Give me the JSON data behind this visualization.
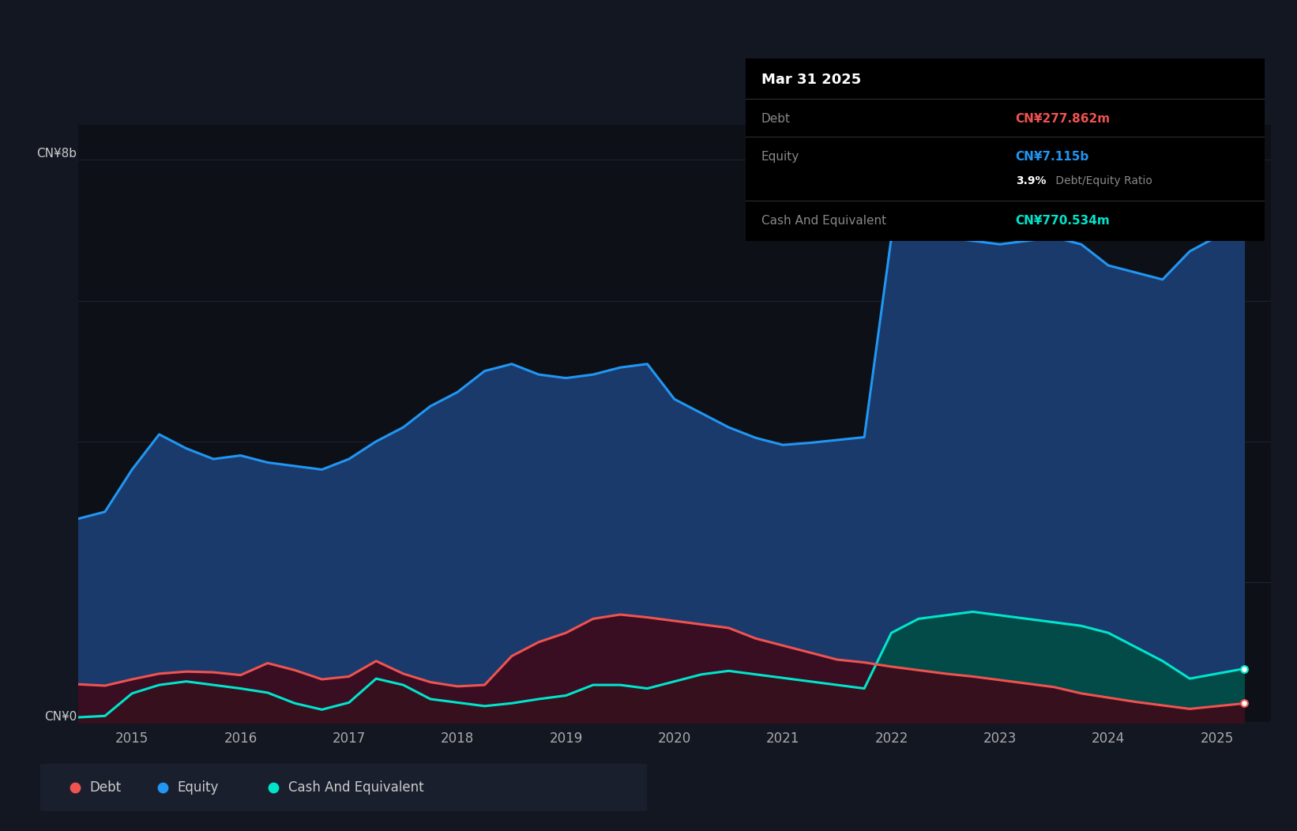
{
  "bg_color": "#131722",
  "plot_bg_color": "#0d1117",
  "grid_color": "#1e2130",
  "equity_color": "#2196F3",
  "equity_fill": "#1a3a6b",
  "debt_color": "#ef5350",
  "debt_fill": "#3d0a1a",
  "cash_color": "#00e5cc",
  "cash_fill": "#004d45",
  "ylim": [
    0,
    8500000000
  ],
  "yticks": [
    0,
    2000000000,
    4000000000,
    6000000000,
    8000000000
  ],
  "tooltip_title": "Mar 31 2025",
  "tooltip_debt_label": "Debt",
  "tooltip_debt_value": "CN¥277.862m",
  "tooltip_equity_label": "Equity",
  "tooltip_equity_value": "CN¥7.115b",
  "tooltip_ratio": "3.9%",
  "tooltip_ratio_label": " Debt/Equity Ratio",
  "tooltip_cash_label": "Cash And Equivalent",
  "tooltip_cash_value": "CN¥770.534m",
  "legend_debt": "Debt",
  "legend_equity": "Equity",
  "legend_cash": "Cash And Equivalent",
  "equity_years": [
    2014.5,
    2014.75,
    2015.0,
    2015.25,
    2015.5,
    2015.75,
    2016.0,
    2016.25,
    2016.5,
    2016.75,
    2017.0,
    2017.25,
    2017.5,
    2017.75,
    2018.0,
    2018.25,
    2018.5,
    2018.75,
    2019.0,
    2019.25,
    2019.5,
    2019.75,
    2020.0,
    2020.25,
    2020.5,
    2020.75,
    2021.0,
    2021.25,
    2021.5,
    2021.75,
    2022.0,
    2022.25,
    2022.5,
    2022.75,
    2023.0,
    2023.25,
    2023.5,
    2023.75,
    2024.0,
    2024.25,
    2024.5,
    2024.75,
    2025.25
  ],
  "equity_vals": [
    2900000000,
    3000000000,
    3600000000,
    4100000000,
    3900000000,
    3750000000,
    3800000000,
    3700000000,
    3650000000,
    3600000000,
    3750000000,
    4000000000,
    4200000000,
    4500000000,
    4700000000,
    5000000000,
    5100000000,
    4950000000,
    4900000000,
    4950000000,
    5050000000,
    5100000000,
    4600000000,
    4400000000,
    4200000000,
    4050000000,
    3950000000,
    3980000000,
    4020000000,
    4060000000,
    6900000000,
    6950000000,
    6900000000,
    6850000000,
    6800000000,
    6850000000,
    6900000000,
    6800000000,
    6500000000,
    6400000000,
    6300000000,
    6700000000,
    7115000000
  ],
  "debt_years": [
    2014.5,
    2014.75,
    2015.0,
    2015.25,
    2015.5,
    2015.75,
    2016.0,
    2016.25,
    2016.5,
    2016.75,
    2017.0,
    2017.25,
    2017.5,
    2017.75,
    2018.0,
    2018.25,
    2018.5,
    2018.75,
    2019.0,
    2019.25,
    2019.5,
    2019.75,
    2020.0,
    2020.25,
    2020.5,
    2020.75,
    2021.0,
    2021.25,
    2021.5,
    2021.75,
    2022.0,
    2022.25,
    2022.5,
    2022.75,
    2023.0,
    2023.25,
    2023.5,
    2023.75,
    2024.0,
    2024.25,
    2024.5,
    2024.75,
    2025.25
  ],
  "debt_vals": [
    550000000,
    530000000,
    620000000,
    700000000,
    730000000,
    720000000,
    680000000,
    850000000,
    750000000,
    620000000,
    660000000,
    880000000,
    700000000,
    580000000,
    520000000,
    540000000,
    950000000,
    1150000000,
    1280000000,
    1480000000,
    1540000000,
    1500000000,
    1450000000,
    1400000000,
    1350000000,
    1200000000,
    1100000000,
    1000000000,
    900000000,
    860000000,
    800000000,
    750000000,
    700000000,
    660000000,
    610000000,
    560000000,
    510000000,
    420000000,
    360000000,
    300000000,
    250000000,
    200000000,
    277862000
  ],
  "cash_years": [
    2014.5,
    2014.75,
    2015.0,
    2015.25,
    2015.5,
    2015.75,
    2016.0,
    2016.25,
    2016.5,
    2016.75,
    2017.0,
    2017.25,
    2017.5,
    2017.75,
    2018.0,
    2018.25,
    2018.5,
    2018.75,
    2019.0,
    2019.25,
    2019.5,
    2019.75,
    2020.0,
    2020.25,
    2020.5,
    2020.75,
    2021.0,
    2021.25,
    2021.5,
    2021.75,
    2022.0,
    2022.25,
    2022.5,
    2022.75,
    2023.0,
    2023.25,
    2023.5,
    2023.75,
    2024.0,
    2024.25,
    2024.5,
    2024.75,
    2025.25
  ],
  "cash_vals": [
    80000000,
    100000000,
    420000000,
    540000000,
    590000000,
    540000000,
    490000000,
    430000000,
    280000000,
    190000000,
    290000000,
    630000000,
    540000000,
    340000000,
    290000000,
    240000000,
    280000000,
    340000000,
    390000000,
    540000000,
    540000000,
    490000000,
    590000000,
    690000000,
    740000000,
    690000000,
    640000000,
    590000000,
    540000000,
    490000000,
    1280000000,
    1480000000,
    1530000000,
    1580000000,
    1530000000,
    1480000000,
    1430000000,
    1380000000,
    1280000000,
    1080000000,
    880000000,
    630000000,
    770534000
  ]
}
